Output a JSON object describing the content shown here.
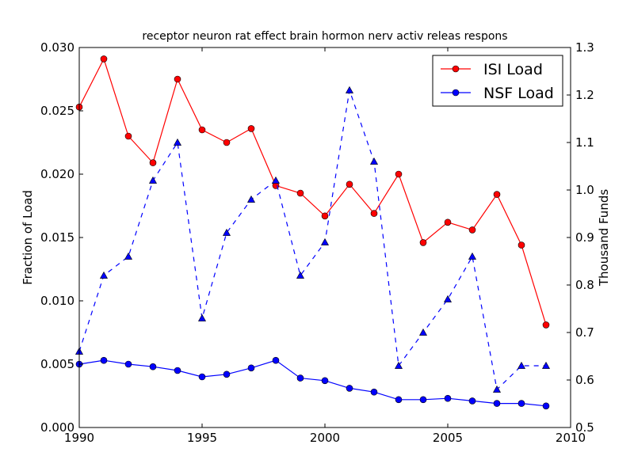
{
  "chart_data": {
    "type": "line",
    "title": "receptor neuron rat effect brain hormon nerv activ releas respons",
    "xlabel": "",
    "ylabel_left": "Fraction of Load",
    "ylabel_right": "Thousand Funds",
    "xlim": [
      1990,
      2010
    ],
    "ylim_left": [
      0.0,
      0.03
    ],
    "ylim_right": [
      0.5,
      1.3
    ],
    "x_ticks": [
      1990,
      1995,
      2000,
      2005,
      2010
    ],
    "x_tick_labels": [
      "1990",
      "1995",
      "2000",
      "2005",
      "2010"
    ],
    "y_left_ticks": [
      0.0,
      0.005,
      0.01,
      0.015,
      0.02,
      0.025,
      0.03
    ],
    "y_left_tick_labels": [
      "0.000",
      "0.005",
      "0.010",
      "0.015",
      "0.020",
      "0.025",
      "0.030"
    ],
    "y_right_ticks": [
      0.5,
      0.6,
      0.7,
      0.8,
      0.9,
      1.0,
      1.1,
      1.2,
      1.3
    ],
    "y_right_tick_labels": [
      "0.5",
      "0.6",
      "0.7",
      "0.8",
      "0.9",
      "1.0",
      "1.1",
      "1.2",
      "1.3"
    ],
    "legend_position": "top-right",
    "grid": false,
    "x": [
      1990,
      1991,
      1992,
      1993,
      1994,
      1995,
      1996,
      1997,
      1998,
      1999,
      2000,
      2001,
      2002,
      2003,
      2004,
      2005,
      2006,
      2007,
      2008,
      2009
    ],
    "series": [
      {
        "name": "ISI Load",
        "axis": "left",
        "color": "#ff0000",
        "marker": "circle",
        "line": "solid",
        "values": [
          0.0253,
          0.0291,
          0.023,
          0.0209,
          0.0275,
          0.0235,
          0.0225,
          0.0236,
          0.0191,
          0.0185,
          0.0167,
          0.0192,
          0.0169,
          0.02,
          0.0146,
          0.0162,
          0.0156,
          0.0184,
          0.0144,
          0.0081
        ]
      },
      {
        "name": "NSF Load",
        "axis": "left",
        "color": "#0000ff",
        "marker": "circle",
        "line": "solid",
        "values": [
          0.005,
          0.0053,
          0.005,
          0.0048,
          0.0045,
          0.004,
          0.0042,
          0.0047,
          0.0053,
          0.0039,
          0.0037,
          0.0031,
          0.0028,
          0.0022,
          0.0022,
          0.0023,
          0.0021,
          0.0019,
          0.0019,
          0.0017
        ]
      },
      {
        "name": "",
        "axis": "right",
        "color": "#0000ff",
        "marker": "triangle",
        "line": "dashed",
        "values": [
          0.66,
          0.82,
          0.86,
          1.02,
          1.1,
          0.73,
          0.91,
          0.98,
          1.02,
          0.82,
          0.89,
          1.21,
          1.06,
          0.63,
          0.7,
          0.77,
          0.86,
          0.58,
          0.63,
          0.63
        ]
      }
    ]
  }
}
